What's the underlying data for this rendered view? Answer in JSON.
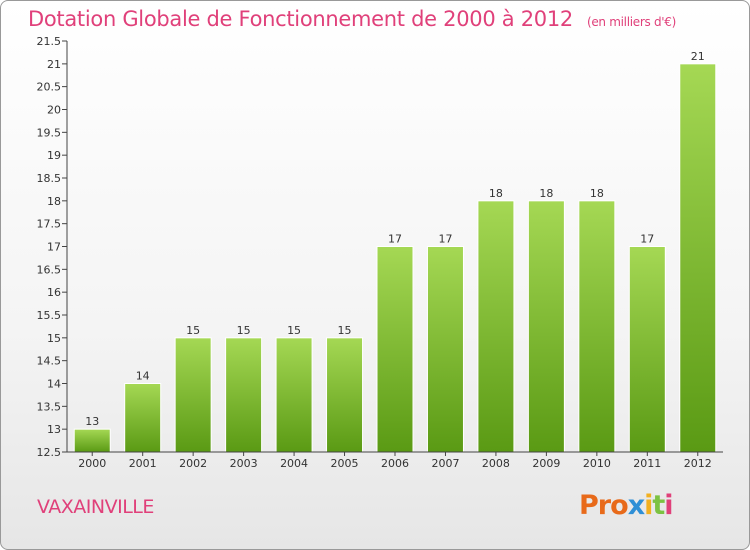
{
  "title": "Dotation Globale de Fonctionnement de 2000 à 2012",
  "subtitle": "(en milliers d'€)",
  "commune": "VAXAINVILLE",
  "logo": "Proxiti",
  "colors": {
    "title": "#e0407a",
    "bar_top": "#a5d854",
    "bar_bottom": "#5a9a14",
    "logo_letters": [
      "#e86a1a",
      "#e86a1a",
      "#e86a1a",
      "#2e8fd6",
      "#f2b020",
      "#7cc242",
      "#e0407a"
    ]
  },
  "chart_data": {
    "type": "bar",
    "categories": [
      "2000",
      "2001",
      "2002",
      "2003",
      "2004",
      "2005",
      "2006",
      "2007",
      "2008",
      "2009",
      "2010",
      "2011",
      "2012"
    ],
    "values": [
      13,
      14,
      15,
      15,
      15,
      15,
      17,
      17,
      18,
      18,
      18,
      17,
      21
    ],
    "value_labels": [
      "13",
      "14",
      "15",
      "15",
      "15",
      "15",
      "17",
      "17",
      "18",
      "18",
      "18",
      "17",
      "21"
    ],
    "ylim": [
      12.5,
      21.5
    ],
    "yticks": [
      "12.5",
      "13",
      "13.5",
      "14",
      "14.5",
      "15",
      "15.5",
      "16",
      "16.5",
      "17",
      "17.5",
      "18",
      "18.5",
      "19",
      "19.5",
      "20",
      "20.5",
      "21",
      "21.5"
    ],
    "grid": false,
    "xlabel": "",
    "ylabel": ""
  }
}
